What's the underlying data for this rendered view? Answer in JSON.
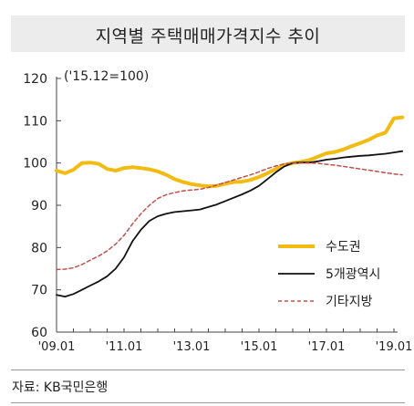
{
  "title": "지역별 주택매매가격지수 추이",
  "source": "자료: KB국민은행",
  "colors": {
    "sudogwon": "#f2bb12",
    "metro": "#111111",
    "other": "#c0504d",
    "title_bg": "#ececec"
  },
  "chart_data": {
    "type": "line",
    "title": "지역별 주택매매가격지수 추이",
    "annotation": "('15.12=100)",
    "ylim": [
      60,
      120
    ],
    "yticks": [
      60,
      70,
      80,
      90,
      100,
      110,
      120
    ],
    "xlim": [
      "2009-01",
      "2019-01"
    ],
    "xticks": [
      "'09.01",
      "'11.01",
      "'13.01",
      "'15.01",
      "'17.01",
      "'19.01"
    ],
    "legend_position": "right",
    "grid": false,
    "x": [
      "2009-01",
      "2009-04",
      "2009-07",
      "2009-10",
      "2010-01",
      "2010-04",
      "2010-07",
      "2010-10",
      "2011-01",
      "2011-04",
      "2011-07",
      "2011-10",
      "2012-01",
      "2012-04",
      "2012-07",
      "2012-10",
      "2013-01",
      "2013-04",
      "2013-07",
      "2013-10",
      "2014-01",
      "2014-04",
      "2014-07",
      "2014-10",
      "2015-01",
      "2015-04",
      "2015-07",
      "2015-10",
      "2016-01",
      "2016-04",
      "2016-07",
      "2016-10",
      "2017-01",
      "2017-04",
      "2017-07",
      "2017-10",
      "2018-01",
      "2018-04",
      "2018-07",
      "2018-10",
      "2019-01",
      "2019-04"
    ],
    "series": [
      {
        "name": "수도권",
        "key": "sudogwon",
        "values": [
          98.2,
          97.6,
          98.4,
          100.0,
          100.1,
          99.8,
          98.6,
          98.2,
          98.8,
          99.0,
          98.8,
          98.5,
          98.0,
          97.2,
          96.2,
          95.5,
          95.0,
          94.7,
          94.5,
          94.6,
          95.1,
          95.5,
          95.6,
          96.0,
          96.7,
          97.6,
          98.6,
          99.5,
          100.0,
          100.3,
          100.7,
          101.5,
          102.3,
          102.6,
          103.2,
          104.0,
          104.7,
          105.5,
          106.5,
          107.2,
          110.6,
          110.8
        ]
      },
      {
        "name": "5개광역시",
        "key": "metro",
        "values": [
          68.8,
          68.4,
          69.0,
          70.0,
          71.0,
          72.0,
          73.2,
          75.0,
          77.7,
          81.5,
          84.2,
          86.3,
          87.4,
          88.0,
          88.4,
          88.6,
          88.8,
          89.0,
          89.6,
          90.2,
          91.0,
          91.8,
          92.6,
          93.5,
          94.6,
          96.2,
          97.8,
          99.2,
          100.0,
          100.1,
          100.1,
          100.4,
          100.8,
          101.0,
          101.3,
          101.5,
          101.7,
          101.8,
          102.0,
          102.2,
          102.5,
          102.8
        ]
      },
      {
        "name": "기타지방",
        "key": "other",
        "values": [
          74.8,
          74.9,
          75.2,
          76.0,
          77.0,
          78.0,
          79.2,
          80.8,
          82.9,
          85.6,
          88.0,
          90.0,
          91.6,
          92.5,
          93.0,
          93.4,
          93.6,
          93.8,
          94.2,
          94.8,
          95.4,
          96.0,
          96.6,
          97.2,
          97.9,
          98.7,
          99.3,
          99.8,
          100.0,
          100.0,
          100.0,
          99.9,
          99.7,
          99.5,
          99.2,
          98.9,
          98.6,
          98.3,
          98.0,
          97.7,
          97.4,
          97.2
        ]
      }
    ]
  }
}
